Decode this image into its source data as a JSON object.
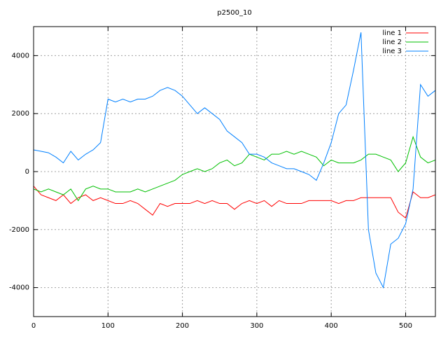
{
  "chart_data": {
    "type": "line",
    "title": "p2500_10",
    "x": [
      0,
      10,
      20,
      30,
      40,
      50,
      60,
      70,
      80,
      90,
      100,
      110,
      120,
      130,
      140,
      150,
      160,
      170,
      180,
      190,
      200,
      210,
      220,
      230,
      240,
      250,
      260,
      270,
      280,
      290,
      300,
      310,
      320,
      330,
      340,
      350,
      360,
      370,
      380,
      390,
      400,
      410,
      420,
      430,
      440,
      450,
      460,
      470,
      480,
      490,
      500,
      510,
      520,
      530,
      540
    ],
    "series": [
      {
        "name": "line 1",
        "color": "#ff0000",
        "values": [
          -500,
          -800,
          -900,
          -1000,
          -800,
          -1100,
          -900,
          -800,
          -1000,
          -900,
          -1000,
          -1100,
          -1100,
          -1000,
          -1100,
          -1300,
          -1500,
          -1100,
          -1200,
          -1100,
          -1100,
          -1100,
          -1000,
          -1100,
          -1000,
          -1100,
          -1100,
          -1300,
          -1100,
          -1000,
          -1100,
          -1000,
          -1200,
          -1000,
          -1100,
          -1100,
          -1100,
          -1000,
          -1000,
          -1000,
          -1000,
          -1100,
          -1000,
          -1000,
          -900,
          -900,
          -900,
          -900,
          -900,
          -1400,
          -1600,
          -700,
          -900,
          -900,
          -800
        ]
      },
      {
        "name": "line 2",
        "color": "#00c000",
        "values": [
          -600,
          -700,
          -600,
          -700,
          -800,
          -600,
          -1000,
          -600,
          -500,
          -600,
          -600,
          -700,
          -700,
          -700,
          -600,
          -700,
          -600,
          -500,
          -400,
          -300,
          -100,
          0,
          100,
          0,
          100,
          300,
          400,
          200,
          300,
          600,
          500,
          400,
          600,
          600,
          700,
          600,
          700,
          600,
          500,
          200,
          400,
          300,
          300,
          300,
          400,
          600,
          600,
          500,
          400,
          0,
          300,
          1200,
          500,
          300,
          400
        ]
      },
      {
        "name": "line 3",
        "color": "#0080ff",
        "values": [
          750,
          700,
          650,
          500,
          300,
          700,
          400,
          600,
          750,
          1000,
          2500,
          2400,
          2500,
          2400,
          2500,
          2500,
          2600,
          2800,
          2900,
          2800,
          2600,
          2300,
          2000,
          2200,
          2000,
          1800,
          1400,
          1200,
          1000,
          600,
          600,
          500,
          300,
          200,
          100,
          100,
          0,
          -100,
          -300,
          300,
          1000,
          2000,
          2300,
          3500,
          4800,
          -2000,
          -3500,
          -4000,
          -2500,
          -2300,
          -1800,
          -600,
          3000,
          2600,
          2800
        ]
      }
    ],
    "xlim": [
      0,
      540
    ],
    "ylim": [
      -5000,
      5000
    ],
    "xticks": [
      0,
      100,
      200,
      300,
      400,
      500
    ],
    "yticks": [
      -4000,
      -2000,
      0,
      2000,
      4000
    ],
    "grid": true,
    "legend": "top-right"
  }
}
